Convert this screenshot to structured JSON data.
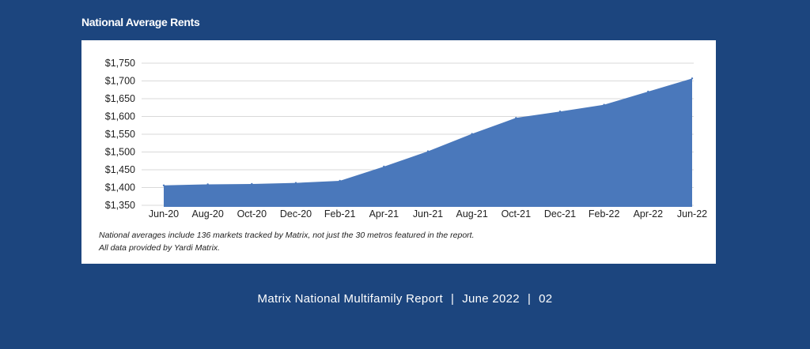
{
  "page": {
    "section_title": "National Average Rents",
    "footer": {
      "report": "Matrix National Multifamily Report",
      "date": "June 2022",
      "page_number": "02"
    }
  },
  "notes": {
    "line1": "National averages include 136 markets tracked by Matrix, not just the 30 metros featured in the report.",
    "line2": "All data provided by Yardi Matrix."
  },
  "colors": {
    "background": "#1c457e",
    "area_fill": "#4a78bb",
    "gridline": "#d9d9d9"
  },
  "chart_data": {
    "type": "area",
    "title": "National Average Rents",
    "xlabel": "",
    "ylabel": "",
    "categories": [
      "Jun-20",
      "Aug-20",
      "Oct-20",
      "Dec-20",
      "Feb-21",
      "Apr-21",
      "Jun-21",
      "Aug-21",
      "Oct-21",
      "Dec-21",
      "Feb-22",
      "Apr-22",
      "Jun-22"
    ],
    "values": [
      1406,
      1409,
      1410,
      1413,
      1419,
      1459,
      1502,
      1551,
      1596,
      1614,
      1633,
      1670,
      1707
    ],
    "ylim": [
      1350,
      1750
    ],
    "yticks": [
      1350,
      1400,
      1450,
      1500,
      1550,
      1600,
      1650,
      1700,
      1750
    ],
    "ytick_labels": [
      "$1,350",
      "$1,400",
      "$1,450",
      "$1,500",
      "$1,550",
      "$1,600",
      "$1,650",
      "$1,700",
      "$1,750"
    ],
    "grid": true,
    "legend": "none"
  }
}
